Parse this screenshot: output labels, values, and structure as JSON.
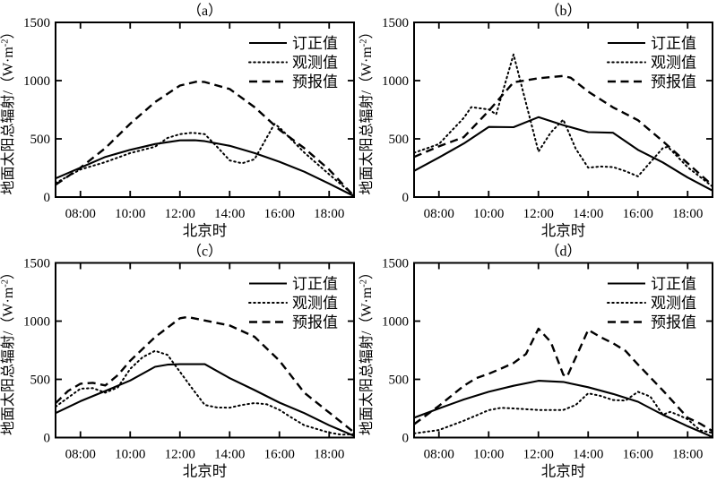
{
  "figure": {
    "background": "#ffffff",
    "ink": "#000000",
    "xlabel": "北京时",
    "ylabel_pre": "地面太阳总辐射/（W·m",
    "ylabel_sup": "-2",
    "ylabel_post": "）",
    "y_ticks": [
      0,
      500,
      1000,
      1500
    ],
    "x_ticks": [
      {
        "h": 8,
        "label": "08:00"
      },
      {
        "h": 10,
        "label": "10:00"
      },
      {
        "h": 12,
        "label": "12:00"
      },
      {
        "h": 14,
        "label": "14:00"
      },
      {
        "h": 16,
        "label": "16:00"
      },
      {
        "h": 18,
        "label": "18:00"
      }
    ],
    "legend": [
      {
        "key": "corrected",
        "label": "订正值",
        "style": "solid"
      },
      {
        "key": "observed",
        "label": "观测值",
        "style": "dotted"
      },
      {
        "key": "forecast",
        "label": "预报值",
        "style": "dashed"
      }
    ]
  },
  "chart_data": [
    {
      "type": "line",
      "panel_title": "（a）",
      "xlabel": "北京时",
      "ylabel": "地面太阳总辐射/（W·m⁻²）",
      "xlim": [
        7,
        19
      ],
      "ylim": [
        0,
        1500
      ],
      "x_unit": "Beijing time (hours)",
      "grid": false,
      "legend_position": "top-right",
      "series": [
        {
          "name": "订正值",
          "style": "solid",
          "points": [
            [
              7,
              160
            ],
            [
              8,
              252
            ],
            [
              9,
              345
            ],
            [
              10,
              405
            ],
            [
              11,
              455
            ],
            [
              12,
              487
            ],
            [
              12.6,
              488
            ],
            [
              13,
              480
            ],
            [
              14,
              440
            ],
            [
              15,
              378
            ],
            [
              16,
              303
            ],
            [
              17,
              218
            ],
            [
              18,
              115
            ],
            [
              19,
              8
            ]
          ]
        },
        {
          "name": "观测值",
          "style": "dotted",
          "points": [
            [
              7,
              120
            ],
            [
              8,
              237
            ],
            [
              9,
              300
            ],
            [
              10,
              378
            ],
            [
              11,
              432
            ],
            [
              11.5,
              508
            ],
            [
              12,
              540
            ],
            [
              12.5,
              552
            ],
            [
              13,
              540
            ],
            [
              13.5,
              430
            ],
            [
              14,
              315
            ],
            [
              14.5,
              290
            ],
            [
              15,
              325
            ],
            [
              15.8,
              628
            ],
            [
              16,
              598
            ],
            [
              17,
              382
            ],
            [
              18,
              195
            ],
            [
              19,
              15
            ]
          ]
        },
        {
          "name": "预报值",
          "style": "dashed",
          "points": [
            [
              7,
              105
            ],
            [
              8,
              252
            ],
            [
              9,
              420
            ],
            [
              10,
              630
            ],
            [
              11,
              815
            ],
            [
              12,
              958
            ],
            [
              12.7,
              992
            ],
            [
              13,
              988
            ],
            [
              14,
              928
            ],
            [
              15,
              772
            ],
            [
              16,
              578
            ],
            [
              17,
              420
            ],
            [
              18,
              235
            ],
            [
              19,
              8
            ]
          ]
        }
      ]
    },
    {
      "type": "line",
      "panel_title": "（b）",
      "xlabel": "北京时",
      "ylabel": "地面太阳总辐射/（W·m⁻²）",
      "xlim": [
        7,
        19
      ],
      "ylim": [
        0,
        1500
      ],
      "x_unit": "Beijing time (hours)",
      "grid": false,
      "legend_position": "top-right",
      "series": [
        {
          "name": "订正值",
          "style": "solid",
          "points": [
            [
              7,
              225
            ],
            [
              8,
              340
            ],
            [
              9,
              460
            ],
            [
              10,
              602
            ],
            [
              11,
              600
            ],
            [
              12,
              686
            ],
            [
              13,
              618
            ],
            [
              14,
              558
            ],
            [
              15,
              552
            ],
            [
              16,
              405
            ],
            [
              17,
              298
            ],
            [
              18,
              168
            ],
            [
              19,
              55
            ]
          ]
        },
        {
          "name": "观测值",
          "style": "dotted",
          "points": [
            [
              7,
              380
            ],
            [
              8,
              455
            ],
            [
              9,
              680
            ],
            [
              9.3,
              772
            ],
            [
              10,
              752
            ],
            [
              10.3,
              710
            ],
            [
              11,
              1225
            ],
            [
              12,
              390
            ],
            [
              12.5,
              555
            ],
            [
              13,
              665
            ],
            [
              13.5,
              415
            ],
            [
              14,
              252
            ],
            [
              14.5,
              262
            ],
            [
              15,
              258
            ],
            [
              15.5,
              222
            ],
            [
              16,
              178
            ],
            [
              17,
              420
            ],
            [
              17.2,
              432
            ],
            [
              18,
              256
            ],
            [
              19,
              90
            ]
          ]
        },
        {
          "name": "预报值",
          "style": "dashed",
          "points": [
            [
              7,
              345
            ],
            [
              8,
              435
            ],
            [
              9,
              515
            ],
            [
              10,
              740
            ],
            [
              11,
              985
            ],
            [
              12,
              1020
            ],
            [
              13,
              1040
            ],
            [
              13.3,
              1025
            ],
            [
              14,
              905
            ],
            [
              15,
              770
            ],
            [
              16,
              660
            ],
            [
              17,
              480
            ],
            [
              18,
              290
            ],
            [
              19,
              100
            ]
          ]
        }
      ]
    },
    {
      "type": "line",
      "panel_title": "（c）",
      "xlabel": "北京时",
      "ylabel": "地面太阳总辐射/（W·m⁻²）",
      "xlim": [
        7,
        19
      ],
      "ylim": [
        0,
        1500
      ],
      "x_unit": "Beijing time (hours)",
      "grid": false,
      "legend_position": "top-right",
      "series": [
        {
          "name": "订正值",
          "style": "solid",
          "points": [
            [
              7,
              210
            ],
            [
              8,
              312
            ],
            [
              9,
              400
            ],
            [
              10,
              490
            ],
            [
              11,
              608
            ],
            [
              11.5,
              626
            ],
            [
              12,
              630
            ],
            [
              13,
              630
            ],
            [
              14,
              510
            ],
            [
              15,
              408
            ],
            [
              16,
              300
            ],
            [
              17,
              210
            ],
            [
              18,
              105
            ],
            [
              19,
              15
            ]
          ]
        },
        {
          "name": "观测值",
          "style": "dotted",
          "points": [
            [
              7,
              265
            ],
            [
              8,
              420
            ],
            [
              8.5,
              425
            ],
            [
              9,
              385
            ],
            [
              9.5,
              430
            ],
            [
              10,
              590
            ],
            [
              10.5,
              690
            ],
            [
              11,
              745
            ],
            [
              11.5,
              710
            ],
            [
              12,
              565
            ],
            [
              12.5,
              420
            ],
            [
              13,
              280
            ],
            [
              13.5,
              258
            ],
            [
              14,
              257
            ],
            [
              14.5,
              280
            ],
            [
              15,
              296
            ],
            [
              15.5,
              285
            ],
            [
              16,
              238
            ],
            [
              16.5,
              170
            ],
            [
              17,
              105
            ],
            [
              18,
              42
            ],
            [
              18.5,
              25
            ],
            [
              19,
              30
            ]
          ]
        },
        {
          "name": "预报值",
          "style": "dashed",
          "points": [
            [
              7,
              295
            ],
            [
              7.5,
              400
            ],
            [
              8,
              462
            ],
            [
              8.5,
              470
            ],
            [
              9,
              448
            ],
            [
              9.5,
              535
            ],
            [
              10,
              660
            ],
            [
              11,
              862
            ],
            [
              12,
              1025
            ],
            [
              12.3,
              1035
            ],
            [
              13,
              1005
            ],
            [
              14,
              962
            ],
            [
              15,
              865
            ],
            [
              16,
              660
            ],
            [
              17,
              385
            ],
            [
              18,
              215
            ],
            [
              19,
              45
            ]
          ]
        }
      ]
    },
    {
      "type": "line",
      "panel_title": "（d）",
      "xlabel": "北京时",
      "ylabel": "地面太阳总辐射/（W·m⁻²）",
      "xlim": [
        7,
        19
      ],
      "ylim": [
        0,
        1500
      ],
      "x_unit": "Beijing time (hours)",
      "grid": false,
      "legend_position": "top-right",
      "series": [
        {
          "name": "订正值",
          "style": "solid",
          "points": [
            [
              7,
              170
            ],
            [
              8,
              250
            ],
            [
              9,
              327
            ],
            [
              10,
              393
            ],
            [
              11,
              445
            ],
            [
              12,
              488
            ],
            [
              13,
              478
            ],
            [
              14,
              432
            ],
            [
              15,
              375
            ],
            [
              16,
              308
            ],
            [
              17,
              196
            ],
            [
              18,
              97
            ],
            [
              19,
              5
            ]
          ]
        },
        {
          "name": "观测值",
          "style": "dotted",
          "points": [
            [
              7,
              35
            ],
            [
              8,
              65
            ],
            [
              9,
              145
            ],
            [
              10,
              235
            ],
            [
              10.5,
              255
            ],
            [
              11,
              250
            ],
            [
              12,
              237
            ],
            [
              13,
              237
            ],
            [
              13.5,
              280
            ],
            [
              14,
              380
            ],
            [
              14.5,
              358
            ],
            [
              15,
              322
            ],
            [
              15.5,
              318
            ],
            [
              16,
              393
            ],
            [
              16.5,
              352
            ],
            [
              17,
              196
            ],
            [
              17.3,
              221
            ],
            [
              17.6,
              196
            ],
            [
              18,
              157
            ],
            [
              18.5,
              62
            ],
            [
              19,
              40
            ]
          ]
        },
        {
          "name": "预报值",
          "style": "dashed",
          "points": [
            [
              7,
              115
            ],
            [
              8,
              272
            ],
            [
              9,
              445
            ],
            [
              9.5,
              510
            ],
            [
              10,
              548
            ],
            [
              10.5,
              592
            ],
            [
              11,
              640
            ],
            [
              11.5,
              718
            ],
            [
              12,
              935
            ],
            [
              12.5,
              820
            ],
            [
              13,
              540
            ],
            [
              13.15,
              522
            ],
            [
              14,
              925
            ],
            [
              14.5,
              862
            ],
            [
              15,
              810
            ],
            [
              15.5,
              745
            ],
            [
              16,
              628
            ],
            [
              17,
              405
            ],
            [
              18,
              170
            ],
            [
              18.5,
              120
            ],
            [
              19,
              55
            ]
          ]
        }
      ]
    }
  ]
}
